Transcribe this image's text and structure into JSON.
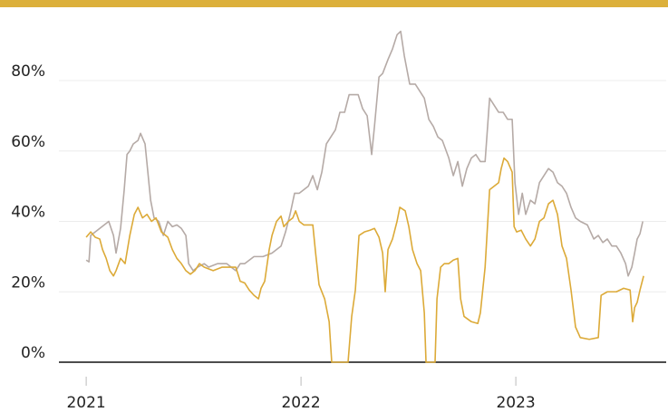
{
  "chart_data": {
    "type": "line",
    "xlim": [
      2020.873,
      2023.7
    ],
    "xticks": [
      2021,
      2022,
      2023
    ],
    "ylim": [
      -8,
      100
    ],
    "yticks": [
      {
        "value": 0,
        "label": "0%"
      },
      {
        "value": 20,
        "label": "20%"
      },
      {
        "value": 40,
        "label": "40%"
      },
      {
        "value": 60,
        "label": "60%"
      },
      {
        "value": 80,
        "label": "80%"
      }
    ],
    "grid": true,
    "series": [
      {
        "color": "#b5aaa6",
        "x": [
          2021.0,
          2021.013,
          2021.021,
          2021.042,
          2021.063,
          2021.084,
          2021.105,
          2021.127,
          2021.139,
          2021.16,
          2021.177,
          2021.19,
          2021.203,
          2021.219,
          2021.241,
          2021.253,
          2021.274,
          2021.287,
          2021.3,
          2021.316,
          2021.338,
          2021.359,
          2021.38,
          2021.401,
          2021.422,
          2021.443,
          2021.464,
          2021.477,
          2021.498,
          2021.519,
          2021.549,
          2021.57,
          2021.612,
          2021.654,
          2021.696,
          2021.717,
          2021.738,
          2021.781,
          2021.823,
          2021.865,
          2021.907,
          2021.928,
          2021.949,
          2021.97,
          2021.992,
          2022.013,
          2022.034,
          2022.055,
          2022.076,
          2022.097,
          2022.118,
          2022.139,
          2022.16,
          2022.181,
          2022.203,
          2022.224,
          2022.245,
          2022.266,
          2022.287,
          2022.308,
          2022.329,
          2022.342,
          2022.363,
          2022.38,
          2022.405,
          2022.426,
          2022.447,
          2022.464,
          2022.481,
          2022.506,
          2022.532,
          2022.553,
          2022.574,
          2022.595,
          2022.616,
          2022.637,
          2022.658,
          2022.688,
          2022.709,
          2022.73,
          2022.751,
          2022.772,
          2022.793,
          2022.814,
          2022.835,
          2022.857,
          2022.878,
          2022.899,
          2022.92,
          2022.941,
          2022.962,
          2022.983,
          2022.996,
          2023.013,
          2023.03,
          2023.046,
          2023.068,
          2023.089,
          2023.11,
          2023.131,
          2023.152,
          2023.173,
          2023.194,
          2023.215,
          2023.236,
          2023.257,
          2023.278,
          2023.3,
          2023.333,
          2023.363,
          2023.384,
          2023.405,
          2023.426,
          2023.447,
          2023.468,
          2023.489,
          2023.511,
          2023.523,
          2023.54,
          2023.553,
          2023.565,
          2023.578,
          2023.591
        ],
        "values": [
          29,
          28.5,
          36,
          37,
          38,
          39,
          40,
          36,
          31,
          38,
          49,
          59,
          60,
          62,
          63,
          65,
          62,
          54,
          46,
          41,
          40,
          36,
          40,
          38.5,
          39,
          38,
          36,
          28,
          26,
          27,
          28,
          27,
          28,
          28,
          26,
          28,
          28,
          30,
          30,
          31,
          33,
          37,
          42,
          48,
          48,
          49,
          50,
          53,
          49,
          54,
          62,
          64,
          66,
          71,
          71,
          76,
          76,
          76,
          72,
          70,
          59,
          67,
          81,
          82,
          86,
          89,
          93,
          94,
          87,
          79,
          79,
          77,
          75,
          69,
          67,
          64,
          63,
          58,
          53,
          57,
          50,
          55,
          58,
          59,
          57,
          57,
          75,
          73,
          71,
          71,
          69,
          69,
          51,
          42,
          48,
          42,
          46,
          45,
          51,
          53,
          55,
          54,
          51,
          50,
          48,
          44,
          41,
          40,
          39,
          35,
          36,
          34,
          35,
          33,
          33,
          31,
          28,
          24.5,
          27,
          31,
          35,
          36.5,
          40
        ]
      },
      {
        "color": "#dcaa38",
        "x": [
          2021.0,
          2021.021,
          2021.042,
          2021.063,
          2021.076,
          2021.093,
          2021.11,
          2021.127,
          2021.139,
          2021.16,
          2021.181,
          2021.203,
          2021.224,
          2021.241,
          2021.262,
          2021.283,
          2021.304,
          2021.325,
          2021.35,
          2021.38,
          2021.401,
          2021.422,
          2021.443,
          2021.464,
          2021.485,
          2021.506,
          2021.527,
          2021.549,
          2021.591,
          2021.633,
          2021.675,
          2021.696,
          2021.717,
          2021.738,
          2021.759,
          2021.781,
          2021.802,
          2021.814,
          2021.831,
          2021.852,
          2021.865,
          2021.886,
          2021.907,
          2021.92,
          2021.941,
          2021.962,
          2021.975,
          2021.992,
          2022.013,
          2022.055,
          2022.068,
          2022.084,
          2022.11,
          2022.131,
          2022.143,
          2022.169,
          2022.194,
          2022.219,
          2022.236,
          2022.253,
          2022.27,
          2022.295,
          2022.321,
          2022.342,
          2022.363,
          2022.38,
          2022.392,
          2022.405,
          2022.426,
          2022.447,
          2022.46,
          2022.485,
          2022.502,
          2022.519,
          2022.54,
          2022.557,
          2022.574,
          2022.582,
          2022.608,
          2022.624,
          2022.633,
          2022.65,
          2022.667,
          2022.688,
          2022.709,
          2022.73,
          2022.743,
          2022.759,
          2022.793,
          2022.823,
          2022.835,
          2022.857,
          2022.878,
          2022.899,
          2022.92,
          2022.932,
          2022.945,
          2022.962,
          2022.983,
          2022.992,
          2023.004,
          2023.025,
          2023.046,
          2023.068,
          2023.089,
          2023.11,
          2023.131,
          2023.152,
          2023.173,
          2023.194,
          2023.215,
          2023.236,
          2023.257,
          2023.278,
          2023.3,
          2023.342,
          2023.384,
          2023.397,
          2023.426,
          2023.468,
          2023.502,
          2023.532,
          2023.544,
          2023.553,
          2023.565,
          2023.578,
          2023.595
        ],
        "values": [
          35.5,
          37,
          35.5,
          35,
          32,
          29.5,
          26,
          24.5,
          26,
          29.5,
          28,
          36,
          42,
          44,
          41,
          42,
          40,
          41,
          37,
          35.5,
          32,
          29.5,
          28,
          26,
          25,
          26,
          28,
          27,
          26,
          27,
          27,
          27,
          23,
          22.5,
          20.5,
          19,
          18,
          21,
          23,
          32,
          36,
          40,
          41.5,
          38.5,
          40,
          41,
          43,
          40,
          39,
          39,
          31,
          22,
          18,
          11.5,
          0,
          0,
          0,
          0,
          13,
          20.5,
          36,
          37,
          37.5,
          38,
          35.5,
          31,
          20,
          32,
          35,
          40,
          44,
          43,
          38.5,
          32,
          28,
          26,
          14,
          0,
          0,
          0,
          18,
          27,
          28,
          28,
          29,
          29.5,
          18,
          13,
          11.5,
          11,
          14,
          27,
          49,
          50,
          51,
          55,
          58,
          57,
          54,
          38.5,
          37,
          37.5,
          35,
          33,
          35,
          40,
          41,
          45,
          46,
          42,
          33,
          29.5,
          20.5,
          10,
          7,
          6.5,
          7,
          19,
          20,
          20,
          21,
          20.5,
          11.5,
          15.5,
          17,
          20.5,
          24.5
        ]
      }
    ]
  }
}
